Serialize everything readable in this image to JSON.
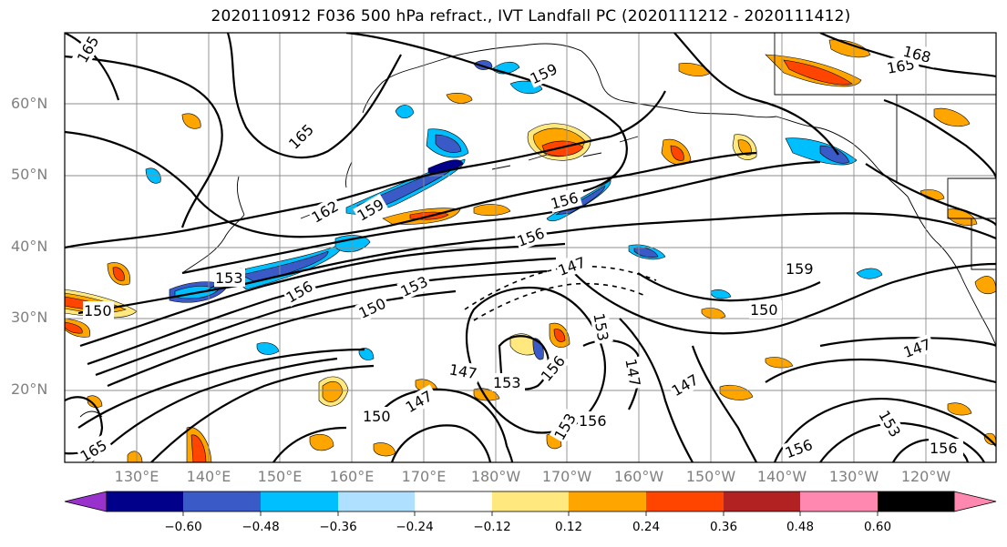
{
  "title": "2020110912 F036 500 hPa refract., IVT Landfall PC (2020111212 - 2020111412)",
  "latitude_labels": [
    "60°N",
    "50°N",
    "40°N",
    "30°N",
    "20°N"
  ],
  "longitude_labels": [
    "130°E",
    "140°E",
    "150°E",
    "160°E",
    "170°E",
    "180°W",
    "170°W",
    "160°W",
    "150°W",
    "140°W",
    "130°W",
    "120°W"
  ],
  "colorbar": {
    "colors": [
      "#9932CC",
      "#00008B",
      "#3A5BC7",
      "#00BFFF",
      "#B0E0FF",
      "#FFFFFF",
      "#FFE97F",
      "#FFA500",
      "#FF4500",
      "#B22222",
      "#FF88B0"
    ],
    "tick_labels": [
      "−0.60",
      "−0.48",
      "−0.36",
      "−0.24",
      "−0.12",
      "0.12",
      "0.24",
      "0.36",
      "0.48",
      "0.60"
    ]
  },
  "contour_labels": [
    "165",
    "165",
    "162",
    "159",
    "156",
    "156",
    "153",
    "150",
    "150",
    "153",
    "156",
    "147",
    "159",
    "150",
    "147",
    "147",
    "153",
    "156",
    "153",
    "147",
    "147",
    "150",
    "147",
    "156",
    "153",
    "156",
    "165",
    "159",
    "165",
    "168",
    "153",
    "156"
  ]
}
